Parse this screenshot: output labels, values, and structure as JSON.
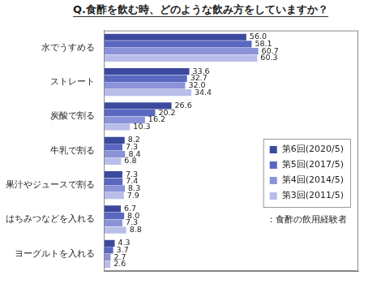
{
  "chart_data": {
    "type": "bar",
    "orientation": "horizontal",
    "title": "Q.食酢を飲む時、どのような飲み方をしていますか？",
    "categories": [
      "水でうすめる",
      "ストレート",
      "炭酸で割る",
      "牛乳で割る",
      "果汁やジュースで割る",
      "はちみつなどを入れる",
      "ヨーグルトを入れる"
    ],
    "series": [
      {
        "name": "第6回(2020/5)",
        "color": "#3b4a9e",
        "values": [
          56.0,
          33.6,
          26.6,
          8.2,
          7.3,
          6.7,
          4.3
        ],
        "value_labels": [
          "56.0",
          "33.6",
          "26.6",
          "8.2",
          "7.3",
          "6.7",
          "4.3"
        ]
      },
      {
        "name": "第5回(2017/5)",
        "color": "#5a68c0",
        "values": [
          58.1,
          32.7,
          20.2,
          7.3,
          7.4,
          8.0,
          3.7
        ],
        "value_labels": [
          "58.1",
          "32.7",
          "20.2",
          "7.3",
          "7.4",
          "8.0",
          "3.7"
        ]
      },
      {
        "name": "第4回(2014/5)",
        "color": "#8a92d8",
        "values": [
          60.7,
          32.0,
          16.2,
          8.4,
          8.3,
          7.3,
          2.7
        ],
        "value_labels": [
          "60.7",
          "32.0",
          "16.2",
          "8.4",
          "8.3",
          "7.3",
          "2.7"
        ]
      },
      {
        "name": "第3回(2011/5)",
        "color": "#b9bde9",
        "values": [
          60.3,
          34.4,
          10.3,
          6.8,
          7.9,
          8.8,
          2.6
        ],
        "value_labels": [
          "60.3",
          "34.4",
          "10.3",
          "6.8",
          "7.9",
          "8.8",
          "2.6"
        ]
      }
    ],
    "xlim": [
      0,
      100
    ],
    "grid": false,
    "tick_labels": "y",
    "data_labels": true,
    "legend": "lower right",
    "annotations": [
      "：食酢の飲用経験者"
    ]
  }
}
